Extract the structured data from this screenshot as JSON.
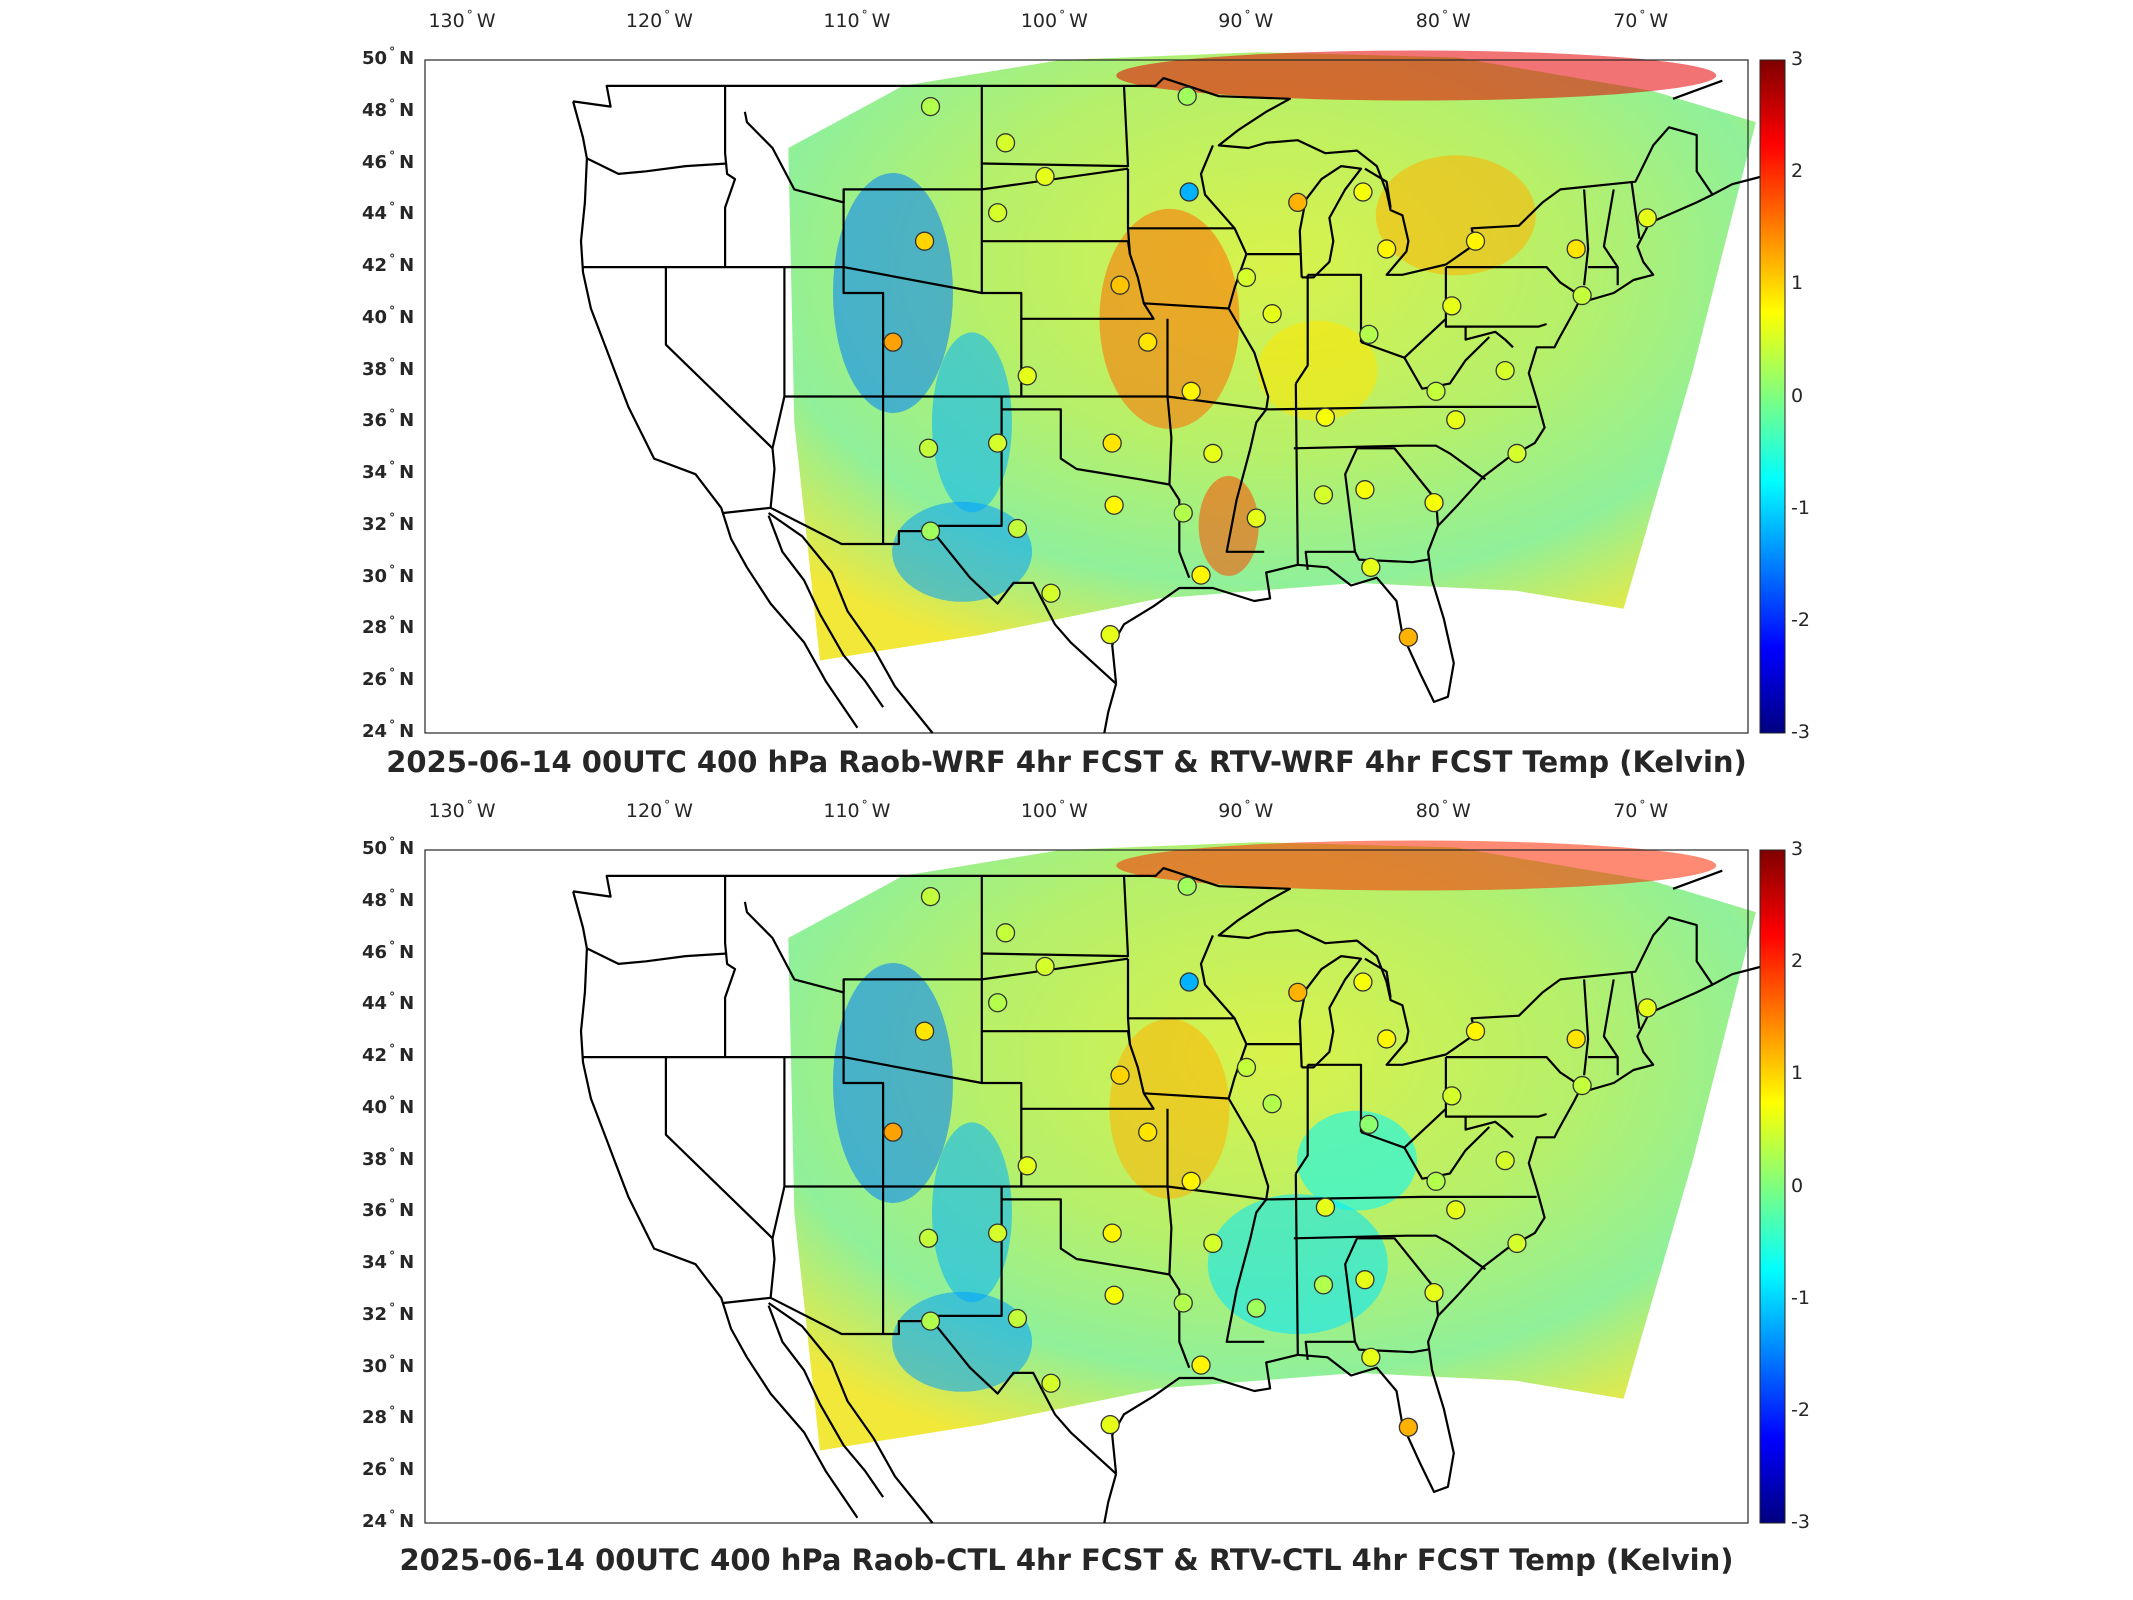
{
  "panels": [
    {
      "id": "top",
      "title": "2025-06-14 00UTC 400 hPa Raob-WRF 4hr FCST & RTV-WRF 4hr FCST Temp (Kelvin)"
    },
    {
      "id": "bottom",
      "title": "2025-06-14 00UTC 400 hPa Raob-CTL 4hr FCST & RTV-CTL 4hr FCST Temp (Kelvin)"
    }
  ],
  "axes": {
    "lon_ticks": [
      {
        "deg": "130",
        "hem": "W",
        "value": -130
      },
      {
        "deg": "120",
        "hem": "W",
        "value": -120
      },
      {
        "deg": "110",
        "hem": "W",
        "value": -110
      },
      {
        "deg": "100",
        "hem": "W",
        "value": -100
      },
      {
        "deg": "90",
        "hem": "W",
        "value": -90
      },
      {
        "deg": "80",
        "hem": "W",
        "value": -80
      },
      {
        "deg": "70",
        "hem": "W",
        "value": -70
      }
    ],
    "lat_ticks": [
      {
        "deg": "50",
        "hem": "N",
        "value": 50
      },
      {
        "deg": "48",
        "hem": "N",
        "value": 48
      },
      {
        "deg": "46",
        "hem": "N",
        "value": 46
      },
      {
        "deg": "44",
        "hem": "N",
        "value": 44
      },
      {
        "deg": "42",
        "hem": "N",
        "value": 42
      },
      {
        "deg": "40",
        "hem": "N",
        "value": 40
      },
      {
        "deg": "38",
        "hem": "N",
        "value": 38
      },
      {
        "deg": "36",
        "hem": "N",
        "value": 36
      },
      {
        "deg": "34",
        "hem": "N",
        "value": 34
      },
      {
        "deg": "32",
        "hem": "N",
        "value": 32
      },
      {
        "deg": "30",
        "hem": "N",
        "value": 30
      },
      {
        "deg": "28",
        "hem": "N",
        "value": 28
      },
      {
        "deg": "26",
        "hem": "N",
        "value": 26
      },
      {
        "deg": "24",
        "hem": "N",
        "value": 24
      }
    ]
  },
  "colorbar": {
    "min": -3,
    "max": 3,
    "tick_labels": [
      "3",
      "2",
      "1",
      "0",
      "-1",
      "-2",
      "-3"
    ],
    "colormap": "jet",
    "colors": [
      "#00007f",
      "#0000ff",
      "#007fff",
      "#00ffff",
      "#7fff7f",
      "#ffff00",
      "#ff7f00",
      "#ff0000",
      "#7f0000"
    ]
  },
  "colors": {
    "border": "#000000",
    "background": "#ffffff",
    "marker_edge": "#333333"
  },
  "stations": [
    {
      "lon": -106.6,
      "lat": 48.2,
      "top": 0.3,
      "bottom": 0.4
    },
    {
      "lon": -102.8,
      "lat": 46.8,
      "top": 0.5,
      "bottom": 0.4
    },
    {
      "lon": -100.8,
      "lat": 45.5,
      "top": 0.6,
      "bottom": 0.5
    },
    {
      "lon": -93.6,
      "lat": 48.6,
      "top": 0.2,
      "bottom": 0.2
    },
    {
      "lon": -93.5,
      "lat": 44.9,
      "top": -1.2,
      "bottom": -1.2
    },
    {
      "lon": -88.0,
      "lat": 44.5,
      "top": 1.2,
      "bottom": 1.2
    },
    {
      "lon": -84.7,
      "lat": 44.9,
      "top": 0.7,
      "bottom": 0.7
    },
    {
      "lon": -83.5,
      "lat": 42.7,
      "top": 0.8,
      "bottom": 0.8
    },
    {
      "lon": -79.0,
      "lat": 43.0,
      "top": 0.8,
      "bottom": 0.8
    },
    {
      "lon": -73.9,
      "lat": 42.7,
      "top": 0.9,
      "bottom": 0.9
    },
    {
      "lon": -70.3,
      "lat": 43.9,
      "top": 0.6,
      "bottom": 0.6
    },
    {
      "lon": -73.6,
      "lat": 40.9,
      "top": 0.4,
      "bottom": 0.4
    },
    {
      "lon": -106.9,
      "lat": 43.0,
      "top": 1.0,
      "bottom": 0.9
    },
    {
      "lon": -103.2,
      "lat": 44.1,
      "top": 0.5,
      "bottom": 0.3
    },
    {
      "lon": -97.0,
      "lat": 41.3,
      "top": 1.1,
      "bottom": 1.0
    },
    {
      "lon": -90.6,
      "lat": 41.6,
      "top": 0.5,
      "bottom": 0.4
    },
    {
      "lon": -89.3,
      "lat": 40.2,
      "top": 0.6,
      "bottom": 0.3
    },
    {
      "lon": -84.4,
      "lat": 39.4,
      "top": 0.3,
      "bottom": 0.1
    },
    {
      "lon": -80.2,
      "lat": 40.5,
      "top": 0.6,
      "bottom": 0.5
    },
    {
      "lon": -108.5,
      "lat": 39.1,
      "top": 1.3,
      "bottom": 1.3
    },
    {
      "lon": -101.7,
      "lat": 37.8,
      "top": 0.6,
      "bottom": 0.6
    },
    {
      "lon": -95.6,
      "lat": 39.1,
      "top": 0.9,
      "bottom": 0.9
    },
    {
      "lon": -93.4,
      "lat": 37.2,
      "top": 0.8,
      "bottom": 0.8
    },
    {
      "lon": -86.6,
      "lat": 36.2,
      "top": 0.7,
      "bottom": 0.6
    },
    {
      "lon": -81.0,
      "lat": 37.2,
      "top": 0.4,
      "bottom": 0.3
    },
    {
      "lon": -77.5,
      "lat": 38.0,
      "top": 0.5,
      "bottom": 0.5
    },
    {
      "lon": -80.0,
      "lat": 36.1,
      "top": 0.6,
      "bottom": 0.6
    },
    {
      "lon": -76.9,
      "lat": 34.8,
      "top": 0.5,
      "bottom": 0.5
    },
    {
      "lon": -106.7,
      "lat": 35.0,
      "top": 0.4,
      "bottom": 0.4
    },
    {
      "lon": -103.2,
      "lat": 35.2,
      "top": 0.5,
      "bottom": 0.5
    },
    {
      "lon": -97.4,
      "lat": 35.2,
      "top": 0.9,
      "bottom": 0.8
    },
    {
      "lon": -92.3,
      "lat": 34.8,
      "top": 0.6,
      "bottom": 0.5
    },
    {
      "lon": -97.3,
      "lat": 32.8,
      "top": 0.8,
      "bottom": 0.7
    },
    {
      "lon": -93.8,
      "lat": 32.5,
      "top": 0.3,
      "bottom": 0.3
    },
    {
      "lon": -90.1,
      "lat": 32.3,
      "top": 0.6,
      "bottom": 0.2
    },
    {
      "lon": -86.7,
      "lat": 33.2,
      "top": 0.5,
      "bottom": 0.3
    },
    {
      "lon": -84.6,
      "lat": 33.4,
      "top": 0.7,
      "bottom": 0.6
    },
    {
      "lon": -81.1,
      "lat": 32.9,
      "top": 0.7,
      "bottom": 0.6
    },
    {
      "lon": -106.6,
      "lat": 31.8,
      "top": 0.2,
      "bottom": 0.3
    },
    {
      "lon": -102.2,
      "lat": 31.9,
      "top": 0.4,
      "bottom": 0.4
    },
    {
      "lon": -100.5,
      "lat": 29.4,
      "top": 0.5,
      "bottom": 0.5
    },
    {
      "lon": -97.5,
      "lat": 27.8,
      "top": 0.6,
      "bottom": 0.6
    },
    {
      "lon": -92.9,
      "lat": 30.1,
      "top": 0.8,
      "bottom": 0.8
    },
    {
      "lon": -84.3,
      "lat": 30.4,
      "top": 0.6,
      "bottom": 0.6
    },
    {
      "lon": -82.4,
      "lat": 27.7,
      "top": 1.2,
      "bottom": 1.2
    }
  ]
}
